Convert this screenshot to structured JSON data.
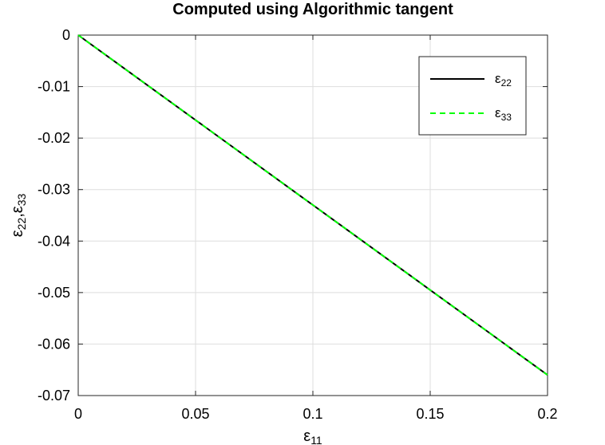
{
  "chart_data": {
    "type": "line",
    "title": "Computed using Algorithmic tangent",
    "xlabel": {
      "base": "ε",
      "sub": "11"
    },
    "ylabel": {
      "parts": [
        {
          "base": "ε",
          "sub": "22"
        },
        {
          "base": ",ε",
          "sub": "33"
        }
      ]
    },
    "xlim": [
      0,
      0.2
    ],
    "ylim": [
      -0.07,
      0
    ],
    "xticks": [
      0,
      0.05,
      0.1,
      0.15,
      0.2
    ],
    "xtick_labels": [
      "0",
      "0.05",
      "0.1",
      "0.15",
      "0.2"
    ],
    "yticks": [
      0,
      -0.01,
      -0.02,
      -0.03,
      -0.04,
      -0.05,
      -0.06,
      -0.07
    ],
    "ytick_labels": [
      "0",
      "-0.01",
      "-0.02",
      "-0.03",
      "-0.04",
      "-0.05",
      "-0.06",
      "-0.07"
    ],
    "grid": true,
    "legend_position": "top-right",
    "series": [
      {
        "name": {
          "base": "ε",
          "sub": "22"
        },
        "color": "#000000",
        "dash": "solid",
        "x": [
          0,
          0.05,
          0.1,
          0.15,
          0.2
        ],
        "y": [
          0,
          -0.0165,
          -0.033,
          -0.0495,
          -0.066
        ]
      },
      {
        "name": {
          "base": "ε",
          "sub": "33"
        },
        "color": "#00ff00",
        "dash": "dashed",
        "x": [
          0,
          0.05,
          0.1,
          0.15,
          0.2
        ],
        "y": [
          0,
          -0.0165,
          -0.033,
          -0.0495,
          -0.066
        ]
      }
    ]
  }
}
